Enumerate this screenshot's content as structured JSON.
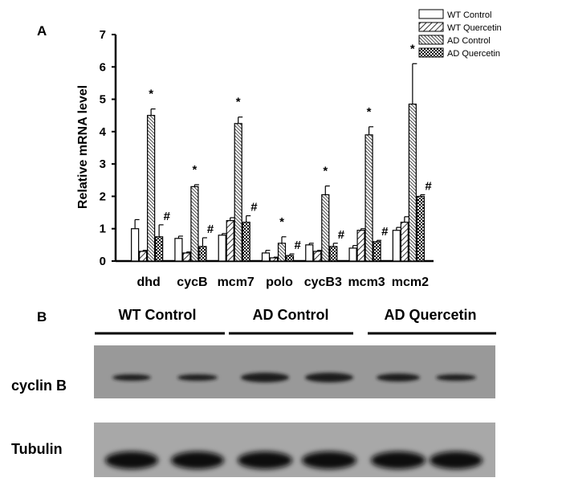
{
  "panel_a_label": "A",
  "panel_b_label": "B",
  "chart_data": {
    "type": "bar",
    "title": "",
    "xlabel": "",
    "ylabel": "Relative mRNA level",
    "ylim": [
      0,
      7
    ],
    "yticks": [
      0,
      1,
      2,
      3,
      4,
      5,
      6,
      7
    ],
    "categories": [
      "dhd",
      "cycB",
      "mcm7",
      "polo",
      "cycB3",
      "mcm3",
      "mcm2"
    ],
    "legend_position": "top-right",
    "series": [
      {
        "name": "WT Control",
        "pattern": "solid-white",
        "values": [
          1.0,
          0.7,
          0.8,
          0.25,
          0.5,
          0.4,
          0.95
        ],
        "errors": [
          0.28,
          0.07,
          0.05,
          0.08,
          0.05,
          0.08,
          0.09
        ]
      },
      {
        "name": "WT Quercetin",
        "pattern": "diagonal",
        "values": [
          0.3,
          0.25,
          1.25,
          0.1,
          0.3,
          0.95,
          1.2
        ],
        "errors": [
          0.03,
          0.03,
          0.09,
          0.02,
          0.03,
          0.05,
          0.17
        ]
      },
      {
        "name": "AD Control",
        "pattern": "dense-diagonal",
        "values": [
          4.5,
          2.3,
          4.25,
          0.55,
          2.05,
          3.9,
          4.85
        ],
        "errors": [
          0.2,
          0.06,
          0.2,
          0.2,
          0.27,
          0.25,
          1.25
        ]
      },
      {
        "name": "AD Quercetin",
        "pattern": "checker",
        "values": [
          0.75,
          0.45,
          1.2,
          0.17,
          0.45,
          0.6,
          2.0
        ],
        "errors": [
          0.37,
          0.27,
          0.2,
          0.05,
          0.1,
          0.04,
          0.05
        ]
      }
    ],
    "annotations": [
      {
        "category": "dhd",
        "series": "AD Control",
        "text": "*"
      },
      {
        "category": "dhd",
        "series": "AD Quercetin",
        "text": "#"
      },
      {
        "category": "cycB",
        "series": "AD Control",
        "text": "*"
      },
      {
        "category": "cycB",
        "series": "AD Quercetin",
        "text": "#"
      },
      {
        "category": "mcm7",
        "series": "AD Control",
        "text": "*"
      },
      {
        "category": "mcm7",
        "series": "AD Quercetin",
        "text": "#"
      },
      {
        "category": "polo",
        "series": "AD Control",
        "text": "*"
      },
      {
        "category": "polo",
        "series": "AD Quercetin",
        "text": "#"
      },
      {
        "category": "cycB3",
        "series": "AD Control",
        "text": "*"
      },
      {
        "category": "cycB3",
        "series": "AD Quercetin",
        "text": "#"
      },
      {
        "category": "mcm3",
        "series": "AD Control",
        "text": "*"
      },
      {
        "category": "mcm3",
        "series": "AD Quercetin",
        "text": "#"
      },
      {
        "category": "mcm2",
        "series": "AD Control",
        "text": "*"
      },
      {
        "category": "mcm2",
        "series": "AD Quercetin",
        "text": "#"
      }
    ]
  },
  "blot": {
    "groups": [
      "WT Control",
      "AD Control",
      "AD Quercetin"
    ],
    "rows": [
      {
        "label": "cyclin B",
        "background": "#999999"
      },
      {
        "label": "Tubulin",
        "background": "#a8a8a8"
      }
    ]
  }
}
